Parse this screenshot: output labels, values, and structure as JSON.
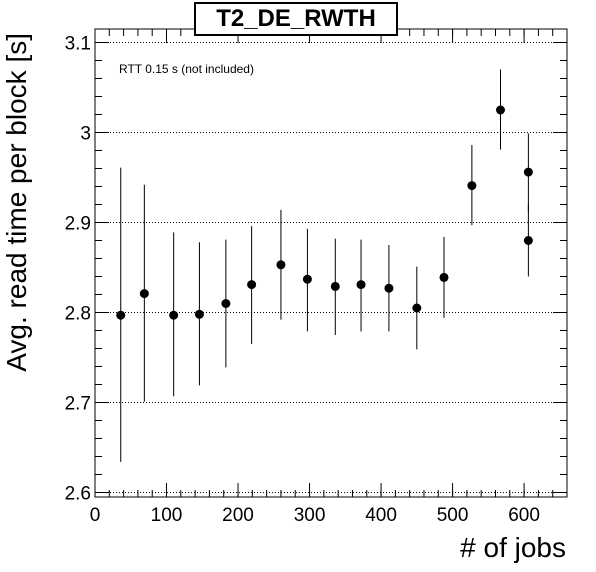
{
  "chart_data": {
    "type": "scatter",
    "title": "T2_DE_RWTH",
    "annotation": "RTT 0.15 s (not included)",
    "xlabel": "# of jobs",
    "ylabel": "Avg. read time per block [s]",
    "xlim": [
      0,
      660
    ],
    "ylim": [
      2.595,
      3.115
    ],
    "xticks": [
      0,
      100,
      200,
      300,
      400,
      500,
      600
    ],
    "yticks": [
      2.6,
      2.7,
      2.8,
      2.9,
      3,
      3.1
    ],
    "grid": "horizontal dotted",
    "legend": "none",
    "points": [
      {
        "x": 36,
        "y": 2.797,
        "ylow": 2.634,
        "yhigh": 2.961
      },
      {
        "x": 69,
        "y": 2.821,
        "ylow": 2.701,
        "yhigh": 2.942
      },
      {
        "x": 110,
        "y": 2.797,
        "ylow": 2.707,
        "yhigh": 2.889
      },
      {
        "x": 146,
        "y": 2.798,
        "ylow": 2.719,
        "yhigh": 2.878
      },
      {
        "x": 183,
        "y": 2.81,
        "ylow": 2.739,
        "yhigh": 2.881
      },
      {
        "x": 219,
        "y": 2.831,
        "ylow": 2.765,
        "yhigh": 2.896
      },
      {
        "x": 260,
        "y": 2.853,
        "ylow": 2.792,
        "yhigh": 2.914
      },
      {
        "x": 297,
        "y": 2.837,
        "ylow": 2.779,
        "yhigh": 2.893
      },
      {
        "x": 336,
        "y": 2.829,
        "ylow": 2.775,
        "yhigh": 2.882
      },
      {
        "x": 372,
        "y": 2.831,
        "ylow": 2.779,
        "yhigh": 2.881
      },
      {
        "x": 411,
        "y": 2.827,
        "ylow": 2.779,
        "yhigh": 2.875
      },
      {
        "x": 450,
        "y": 2.805,
        "ylow": 2.759,
        "yhigh": 2.851
      },
      {
        "x": 488,
        "y": 2.839,
        "ylow": 2.794,
        "yhigh": 2.884
      },
      {
        "x": 527,
        "y": 2.941,
        "ylow": 2.897,
        "yhigh": 2.986
      },
      {
        "x": 567,
        "y": 3.025,
        "ylow": 2.981,
        "yhigh": 3.07
      },
      {
        "x": 606,
        "y": 2.956,
        "ylow": 2.912,
        "yhigh": 2.999
      },
      {
        "x": 606,
        "y": 2.88,
        "ylow": 2.84,
        "yhigh": 2.92
      }
    ]
  }
}
